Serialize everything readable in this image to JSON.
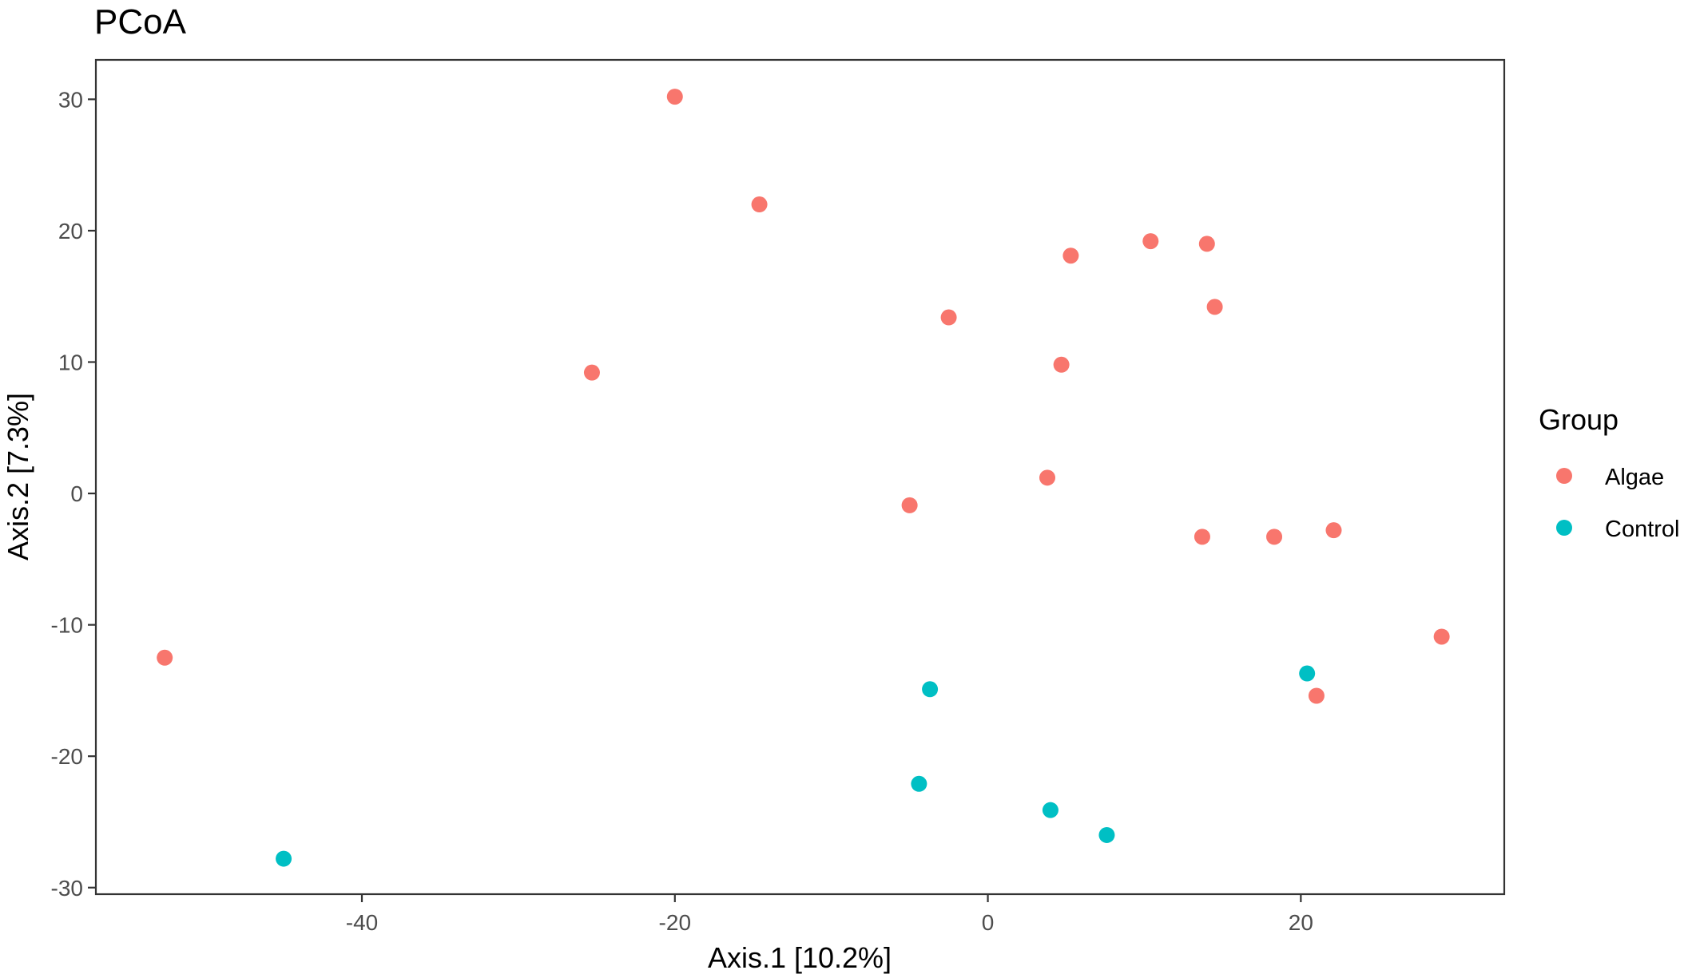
{
  "chart_data": {
    "type": "scatter",
    "title": "PCoA",
    "xlabel": "Axis.1   [10.2%]",
    "ylabel": "Axis.2   [7.3%]",
    "xlim": [
      -57,
      33
    ],
    "ylim": [
      -30.5,
      33
    ],
    "x_ticks": [
      -40,
      -20,
      0,
      20
    ],
    "y_ticks": [
      -30,
      -20,
      -10,
      0,
      10,
      20,
      30
    ],
    "grid": false,
    "legend": {
      "title": "Group",
      "position": "right"
    },
    "series": [
      {
        "name": "Algae",
        "color": "#F8766D",
        "points": [
          {
            "x": -20.0,
            "y": 30.2
          },
          {
            "x": -14.6,
            "y": 22.0
          },
          {
            "x": -25.3,
            "y": 9.2
          },
          {
            "x": -52.6,
            "y": -12.5
          },
          {
            "x": -2.5,
            "y": 13.4
          },
          {
            "x": -5.0,
            "y": -0.9
          },
          {
            "x": 3.8,
            "y": 1.2
          },
          {
            "x": 4.7,
            "y": 9.8
          },
          {
            "x": 5.3,
            "y": 18.1
          },
          {
            "x": 10.4,
            "y": 19.2
          },
          {
            "x": 14.0,
            "y": 19.0
          },
          {
            "x": 14.5,
            "y": 14.2
          },
          {
            "x": 13.7,
            "y": -3.3
          },
          {
            "x": 18.3,
            "y": -3.3
          },
          {
            "x": 22.1,
            "y": -2.8
          },
          {
            "x": 29.0,
            "y": -10.9
          },
          {
            "x": 21.0,
            "y": -15.4
          }
        ]
      },
      {
        "name": "Control",
        "color": "#00BFC4",
        "points": [
          {
            "x": -45.0,
            "y": -27.8
          },
          {
            "x": -3.7,
            "y": -14.9
          },
          {
            "x": -4.4,
            "y": -22.1
          },
          {
            "x": 4.0,
            "y": -24.1
          },
          {
            "x": 7.6,
            "y": -26.0
          },
          {
            "x": 20.4,
            "y": -13.7
          }
        ]
      }
    ]
  }
}
